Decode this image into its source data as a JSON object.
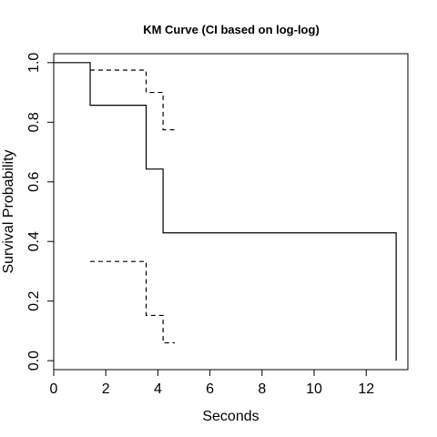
{
  "chart_data": {
    "type": "line",
    "title": "KM Curve (CI based on log-log)",
    "xlabel": "Seconds",
    "ylabel": "Survival Probability",
    "xlim": [
      0,
      13.6
    ],
    "ylim": [
      -0.03,
      1.03
    ],
    "xticks": [
      0,
      2,
      4,
      6,
      8,
      10,
      12
    ],
    "xtick_labels": [
      "0",
      "2",
      "4",
      "6",
      "8",
      "10",
      "12"
    ],
    "yticks": [
      0,
      0.2,
      0.4,
      0.6,
      0.8,
      1
    ],
    "ytick_labels": [
      "0.0",
      "0.2",
      "0.4",
      "0.6",
      "0.8",
      "1.0"
    ],
    "grid": false,
    "series": [
      {
        "style": "solid",
        "step": true,
        "x": [
          0,
          1.4,
          3.55,
          4.2,
          13.15
        ],
        "y": [
          1.0,
          0.857,
          0.643,
          0.429,
          0.429
        ],
        "drop_to_zero_at": 13.15
      },
      {
        "style": "dashed",
        "step": true,
        "x": [
          1.4,
          3.55,
          4.2,
          4.65
        ],
        "y": [
          0.975,
          0.9,
          0.775,
          0.775
        ]
      },
      {
        "style": "dashed",
        "step": true,
        "x": [
          1.4,
          3.55,
          4.2,
          4.65
        ],
        "y": [
          0.333,
          0.152,
          0.06,
          0.06
        ]
      }
    ]
  }
}
